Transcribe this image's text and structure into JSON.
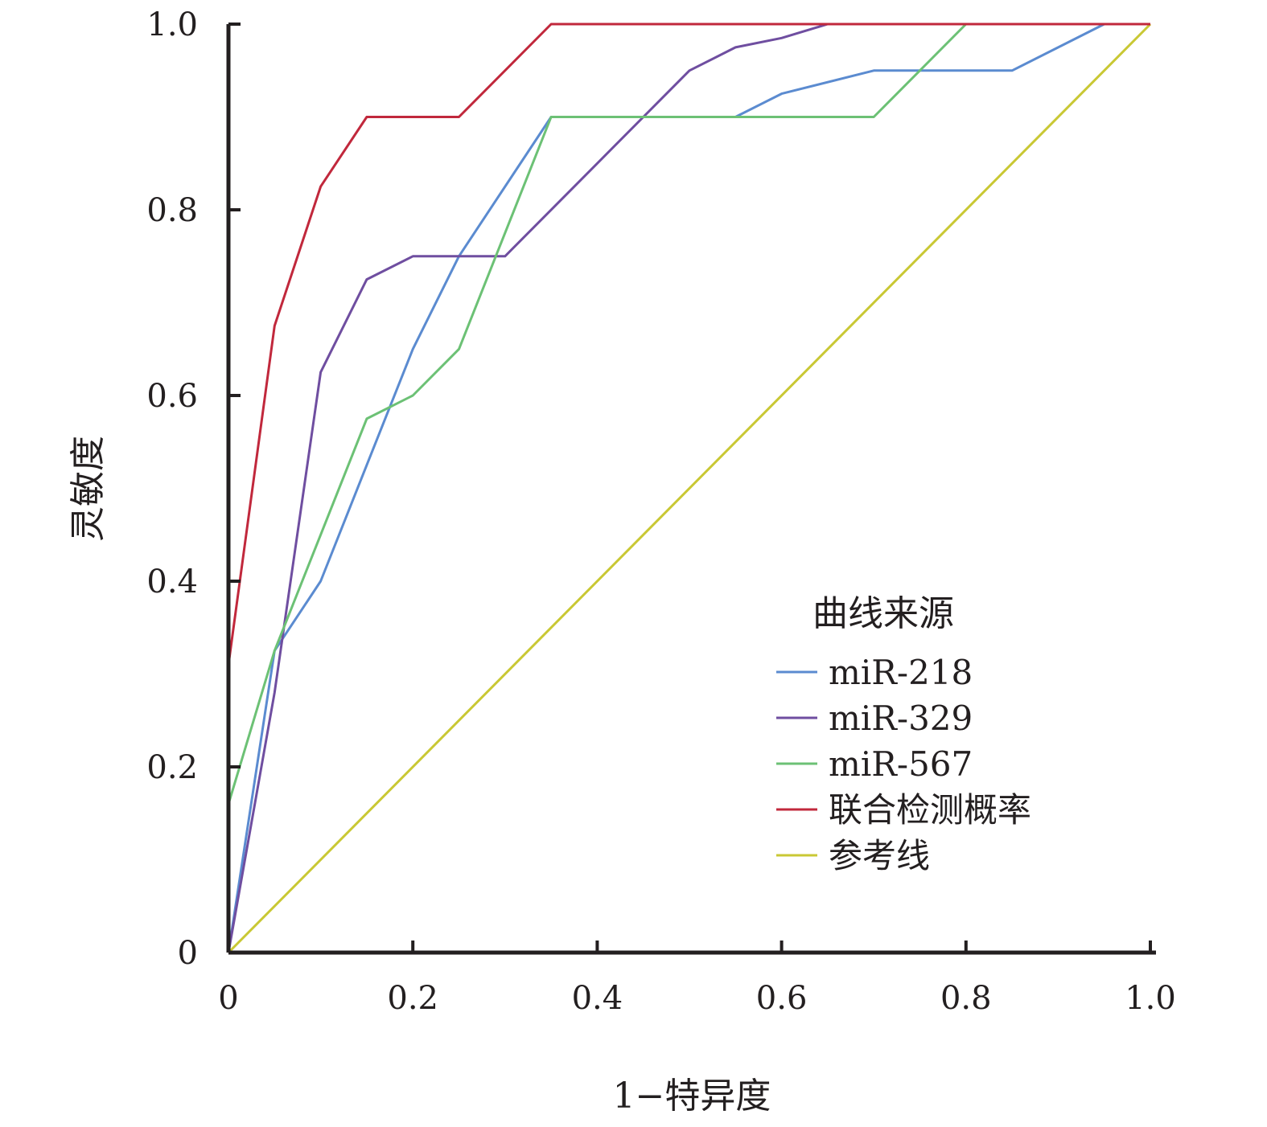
{
  "chart_data": {
    "type": "line",
    "xlabel": "1−特异度",
    "ylabel": "灵敏度",
    "xlim": [
      0,
      1
    ],
    "ylim": [
      0,
      1
    ],
    "x_ticks": [
      "0",
      "0.2",
      "0.4",
      "0.6",
      "0.8",
      "1.0"
    ],
    "y_ticks": [
      "0",
      "0.2",
      "0.4",
      "0.6",
      "0.8",
      "1.0"
    ],
    "grid": false,
    "legend": {
      "title": "曲线来源",
      "placement": "bottom-right"
    },
    "series": [
      {
        "name": "miR-218",
        "color": "#5b8bd0",
        "points": [
          [
            0,
            0
          ],
          [
            0.05,
            0.325
          ],
          [
            0.1,
            0.4
          ],
          [
            0.15,
            0.525
          ],
          [
            0.2,
            0.65
          ],
          [
            0.25,
            0.75
          ],
          [
            0.35,
            0.9
          ],
          [
            0.55,
            0.9
          ],
          [
            0.6,
            0.925
          ],
          [
            0.7,
            0.95
          ],
          [
            0.85,
            0.95
          ],
          [
            0.95,
            1.0
          ],
          [
            1.0,
            1.0
          ]
        ]
      },
      {
        "name": "miR-329",
        "color": "#6f4ea0",
        "points": [
          [
            0,
            0
          ],
          [
            0.05,
            0.28
          ],
          [
            0.1,
            0.625
          ],
          [
            0.15,
            0.725
          ],
          [
            0.2,
            0.75
          ],
          [
            0.3,
            0.75
          ],
          [
            0.4,
            0.85
          ],
          [
            0.5,
            0.95
          ],
          [
            0.55,
            0.975
          ],
          [
            0.6,
            0.985
          ],
          [
            0.65,
            1.0
          ],
          [
            1.0,
            1.0
          ]
        ]
      },
      {
        "name": "miR-567",
        "color": "#6cc175",
        "points": [
          [
            0,
            0.16
          ],
          [
            0.05,
            0.325
          ],
          [
            0.1,
            0.45
          ],
          [
            0.15,
            0.575
          ],
          [
            0.2,
            0.6
          ],
          [
            0.25,
            0.65
          ],
          [
            0.35,
            0.9
          ],
          [
            0.7,
            0.9
          ],
          [
            0.8,
            1.0
          ],
          [
            1.0,
            1.0
          ]
        ]
      },
      {
        "name": "联合检测概率",
        "color": "#c1283c",
        "points": [
          [
            0,
            0.31
          ],
          [
            0.05,
            0.675
          ],
          [
            0.1,
            0.825
          ],
          [
            0.15,
            0.9
          ],
          [
            0.25,
            0.9
          ],
          [
            0.35,
            1.0
          ],
          [
            1.0,
            1.0
          ]
        ]
      },
      {
        "name": "参考线",
        "color": "#c9c834",
        "points": [
          [
            0,
            0
          ],
          [
            1,
            1
          ]
        ]
      }
    ]
  }
}
